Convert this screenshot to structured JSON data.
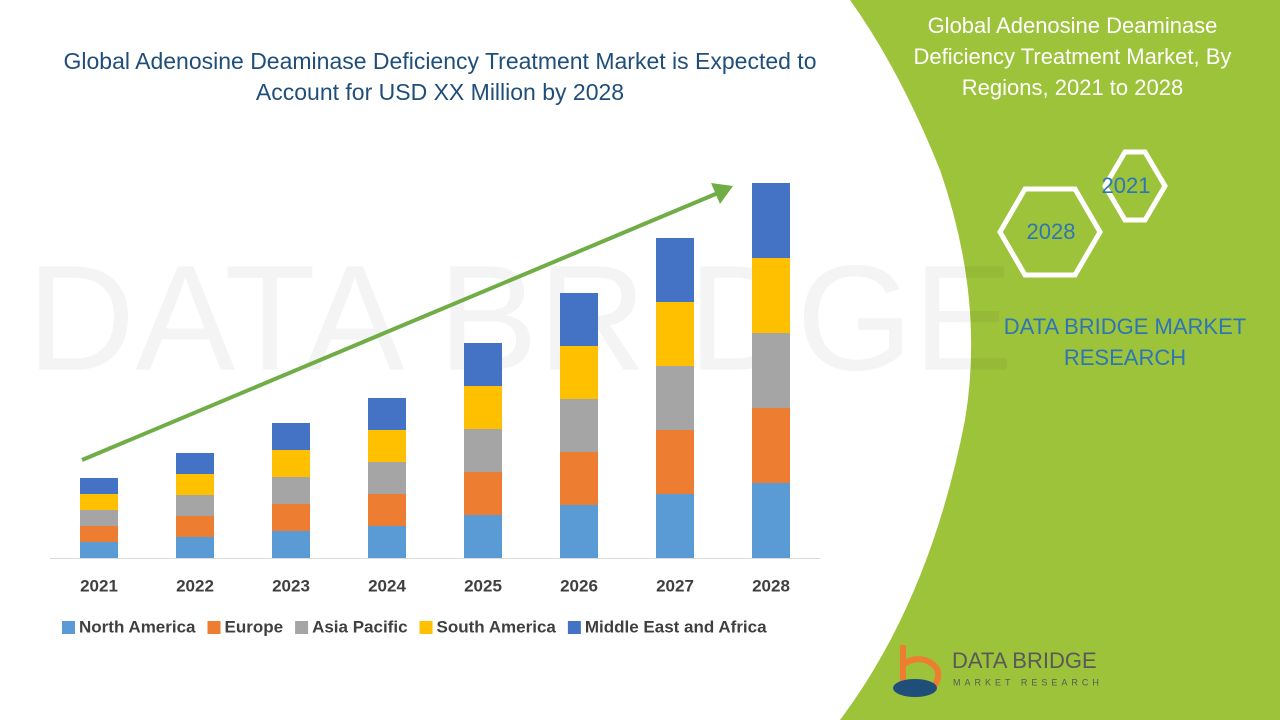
{
  "chart_data": {
    "type": "stacked-bar",
    "title": "Global Adenosine Deaminase Deficiency Treatment Market is Expected to Account for USD XX Million by 2028",
    "categories": [
      "2021",
      "2022",
      "2023",
      "2024",
      "2025",
      "2026",
      "2027",
      "2028"
    ],
    "series": [
      {
        "name": "North America",
        "color": "#5b9bd5",
        "values": [
          16,
          21,
          27,
          32,
          43,
          53,
          64,
          75
        ]
      },
      {
        "name": "Europe",
        "color": "#ed7d31",
        "values": [
          16,
          21,
          27,
          32,
          43,
          53,
          64,
          75
        ]
      },
      {
        "name": "Asia Pacific",
        "color": "#a5a5a5",
        "values": [
          16,
          21,
          27,
          32,
          43,
          53,
          64,
          75
        ]
      },
      {
        "name": "South America",
        "color": "#ffc000",
        "values": [
          16,
          21,
          27,
          32,
          43,
          53,
          64,
          75
        ]
      },
      {
        "name": "Middle East and Africa",
        "color": "#4472c4",
        "values": [
          16,
          21,
          27,
          32,
          43,
          53,
          64,
          75
        ]
      }
    ],
    "ylim": [
      0,
      400
    ]
  },
  "panel": {
    "title": "Global Adenosine Deaminase Deficiency Treatment Market, By Regions, 2021 to 2028",
    "hexagons": [
      "2021",
      "2028"
    ],
    "brand": "DATA BRIDGE MARKET RESEARCH",
    "logo_name": "DATA BRIDGE",
    "logo_tagline": "MARKET RESEARCH"
  }
}
